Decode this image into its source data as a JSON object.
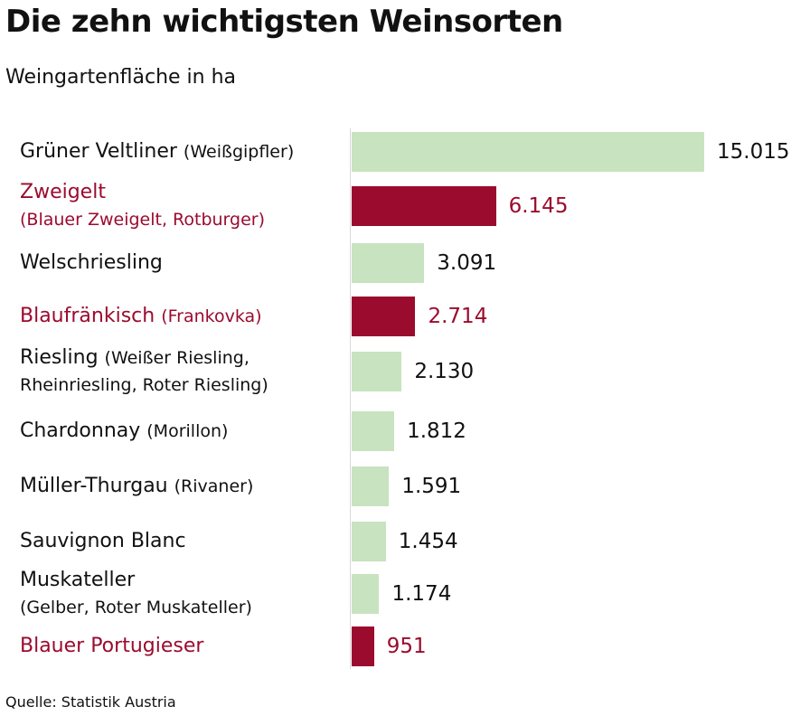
{
  "header": {
    "title": "Die zehn wichtigsten Weinsorten",
    "subtitle": "Weingartenfläche in ha"
  },
  "footer": {
    "source": "Quelle: Statistik Austria"
  },
  "colors": {
    "white_wine": "#c8e3bf",
    "red_wine": "#9b0b2e",
    "red_text": "#9b0b2e",
    "white_text": "#111111"
  },
  "chart_data": {
    "type": "bar",
    "orientation": "horizontal",
    "title": "Die zehn wichtigsten Weinsorten",
    "subtitle": "Weingartenfläche in ha",
    "xlim": [
      0,
      15015
    ],
    "categories": [
      {
        "name": "Grüner Veltliner",
        "alias": "(Weißgipfler)",
        "alias_inline": true,
        "value": 15015,
        "value_label": "15.015",
        "wine": "white"
      },
      {
        "name": "Zweigelt",
        "alias": "(Blauer Zweigelt, Rotburger)",
        "alias_inline": false,
        "value": 6145,
        "value_label": "6.145",
        "wine": "red"
      },
      {
        "name": "Welschriesling",
        "alias": "",
        "alias_inline": true,
        "value": 3091,
        "value_label": "3.091",
        "wine": "white"
      },
      {
        "name": "Blaufränkisch",
        "alias": "(Frankovka)",
        "alias_inline": true,
        "value": 2714,
        "value_label": "2.714",
        "wine": "red"
      },
      {
        "name": "Riesling",
        "alias": "(Weißer Riesling, Rheinriesling, Roter Riesling)",
        "alias_inline": true,
        "value": 2130,
        "value_label": "2.130",
        "wine": "white"
      },
      {
        "name": "Chardonnay",
        "alias": "(Morillon)",
        "alias_inline": true,
        "value": 1812,
        "value_label": "1.812",
        "wine": "white"
      },
      {
        "name": "Müller-Thurgau",
        "alias": "(Rivaner)",
        "alias_inline": true,
        "value": 1591,
        "value_label": "1.591",
        "wine": "white"
      },
      {
        "name": "Sauvignon Blanc",
        "alias": "",
        "alias_inline": true,
        "value": 1454,
        "value_label": "1.454",
        "wine": "white"
      },
      {
        "name": "Muskateller",
        "alias": "(Gelber, Roter Muskateller)",
        "alias_inline": false,
        "value": 1174,
        "value_label": "1.174",
        "wine": "white"
      },
      {
        "name": "Blauer Portugieser",
        "alias": "",
        "alias_inline": true,
        "value": 951,
        "value_label": "951",
        "wine": "red"
      }
    ]
  }
}
